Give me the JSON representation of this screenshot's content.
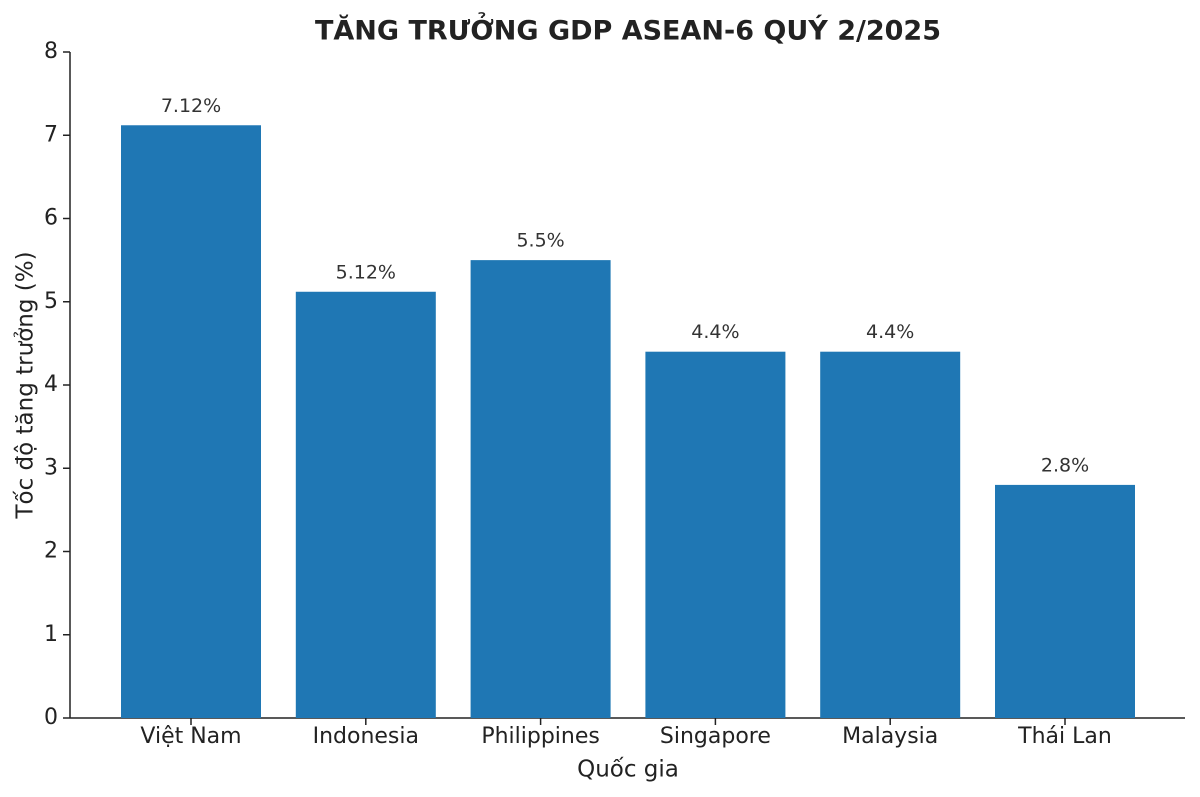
{
  "chart_data": {
    "type": "bar",
    "title": "TĂNG TRƯỞNG GDP ASEAN-6 QUÝ 2/2025",
    "x_label": "Quốc gia",
    "y_label": "Tốc độ tăng trưởng (%)",
    "categories": [
      "Việt Nam",
      "Indonesia",
      "Philippines",
      "Singapore",
      "Malaysia",
      "Thái Lan"
    ],
    "values": [
      7.12,
      5.12,
      5.5,
      4.4,
      4.4,
      2.8
    ],
    "value_labels": [
      "7.12%",
      "5.12%",
      "5.5%",
      "4.4%",
      "4.4%",
      "2.8%"
    ],
    "color": "#1f77b4",
    "ylim": [
      0,
      8
    ],
    "yticks": [
      0,
      1,
      2,
      3,
      4,
      5,
      6,
      7,
      8
    ],
    "grid": false
  }
}
